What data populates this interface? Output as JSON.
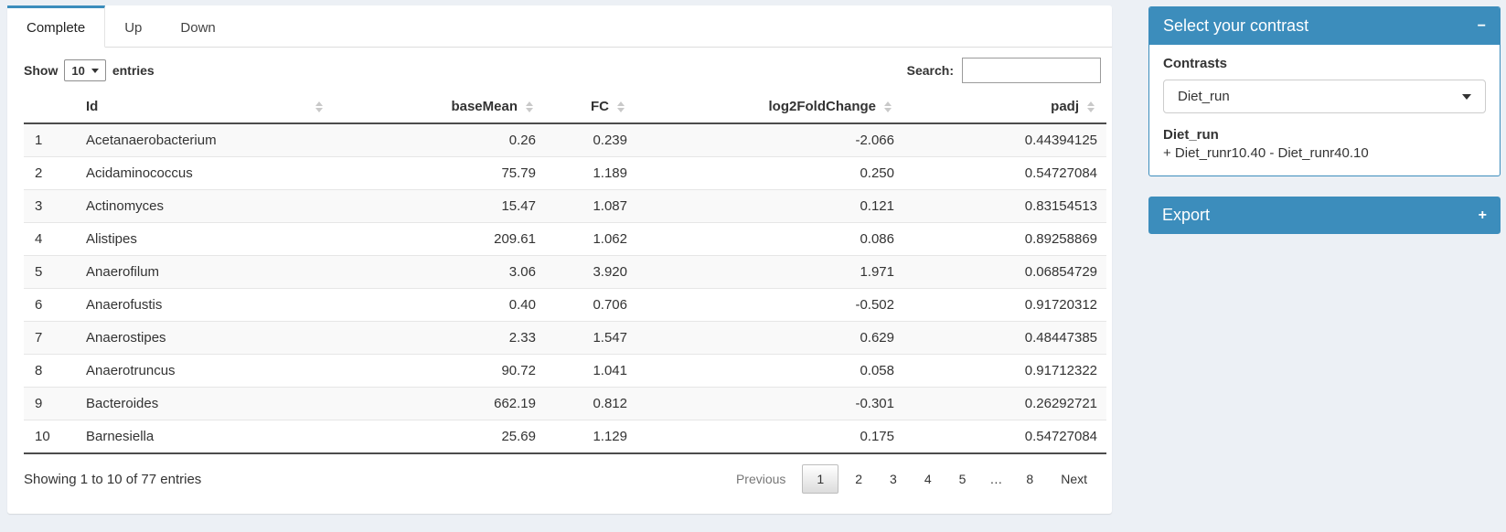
{
  "colors": {
    "accent": "#3c8dbc",
    "page_bg": "#ecf0f5"
  },
  "icons": {
    "collapse": "−",
    "expand": "+",
    "sort": "up-down-arrows",
    "caret": "caret-down"
  },
  "tabs": [
    {
      "label": "Complete",
      "active": true
    },
    {
      "label": "Up",
      "active": false
    },
    {
      "label": "Down",
      "active": false
    }
  ],
  "controls": {
    "show_label": "Show",
    "page_length": "10",
    "entries_label": "entries",
    "search_label": "Search:",
    "search_value": ""
  },
  "table": {
    "columns": [
      "Id",
      "baseMean",
      "FC",
      "log2FoldChange",
      "padj"
    ],
    "rows": [
      {
        "num": "1",
        "id": "Acetanaerobacterium",
        "baseMean": "0.26",
        "fc": "0.239",
        "log2fc": "-2.066",
        "padj": "0.44394125"
      },
      {
        "num": "2",
        "id": "Acidaminococcus",
        "baseMean": "75.79",
        "fc": "1.189",
        "log2fc": "0.250",
        "padj": "0.54727084"
      },
      {
        "num": "3",
        "id": "Actinomyces",
        "baseMean": "15.47",
        "fc": "1.087",
        "log2fc": "0.121",
        "padj": "0.83154513"
      },
      {
        "num": "4",
        "id": "Alistipes",
        "baseMean": "209.61",
        "fc": "1.062",
        "log2fc": "0.086",
        "padj": "0.89258869"
      },
      {
        "num": "5",
        "id": "Anaerofilum",
        "baseMean": "3.06",
        "fc": "3.920",
        "log2fc": "1.971",
        "padj": "0.06854729"
      },
      {
        "num": "6",
        "id": "Anaerofustis",
        "baseMean": "0.40",
        "fc": "0.706",
        "log2fc": "-0.502",
        "padj": "0.91720312"
      },
      {
        "num": "7",
        "id": "Anaerostipes",
        "baseMean": "2.33",
        "fc": "1.547",
        "log2fc": "0.629",
        "padj": "0.48447385"
      },
      {
        "num": "8",
        "id": "Anaerotruncus",
        "baseMean": "90.72",
        "fc": "1.041",
        "log2fc": "0.058",
        "padj": "0.91712322"
      },
      {
        "num": "9",
        "id": "Bacteroides",
        "baseMean": "662.19",
        "fc": "0.812",
        "log2fc": "-0.301",
        "padj": "0.26292721"
      },
      {
        "num": "10",
        "id": "Barnesiella",
        "baseMean": "25.69",
        "fc": "1.129",
        "log2fc": "0.175",
        "padj": "0.54727084"
      }
    ]
  },
  "footer": {
    "info": "Showing 1 to 10 of 77 entries",
    "pagination": [
      {
        "label": "Previous",
        "state": "disabled"
      },
      {
        "label": "1",
        "state": "active"
      },
      {
        "label": "2",
        "state": ""
      },
      {
        "label": "3",
        "state": ""
      },
      {
        "label": "4",
        "state": ""
      },
      {
        "label": "5",
        "state": ""
      },
      {
        "label": "…",
        "state": "ellipsis"
      },
      {
        "label": "8",
        "state": ""
      },
      {
        "label": "Next",
        "state": ""
      }
    ]
  },
  "contrast_box": {
    "title": "Select your contrast",
    "contrasts_label": "Contrasts",
    "selected_contrast": "Diet_run",
    "contrast_name": "Diet_run",
    "contrast_formula": "+ Diet_runr10.40 - Diet_runr40.10"
  },
  "export_box": {
    "title": "Export"
  }
}
